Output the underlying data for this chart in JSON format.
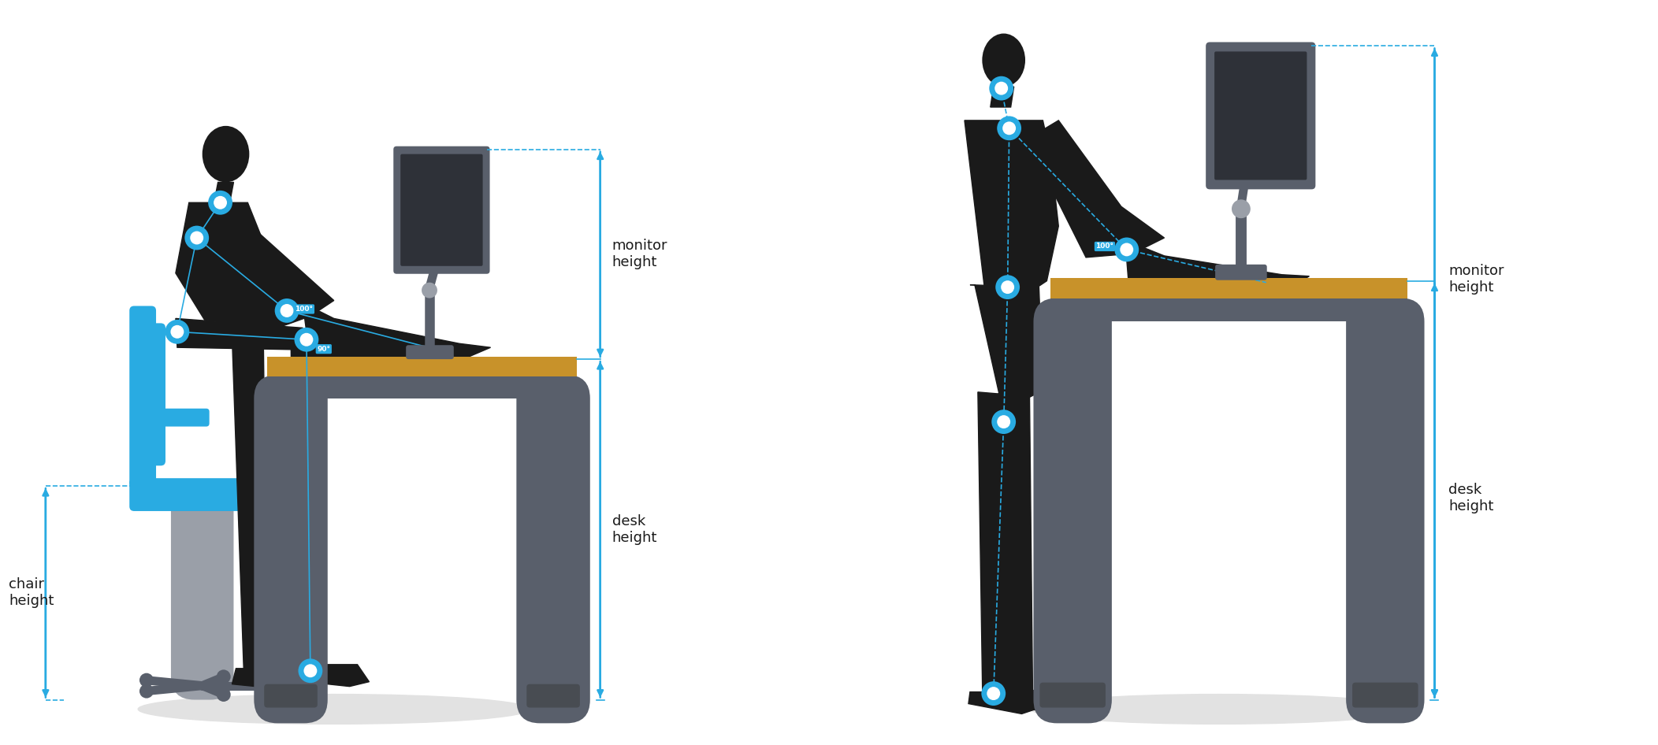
{
  "bg_color": "#ffffff",
  "cyan": "#29abe2",
  "dark_gray": "#595f6b",
  "medium_gray": "#9a9fa8",
  "light_gray": "#cccccc",
  "gold": "#c8922a",
  "black": "#1a1a1a",
  "chair_blue": "#29abe2",
  "shadow_color": "#e2e2e2",
  "labels": {
    "chair_height": "chair\nheight",
    "desk_height_sit": "desk\nheight",
    "monitor_height_sit": "monitor\nheight",
    "desk_height_stand": "desk\nheight",
    "monitor_height_stand": "monitor\nheight"
  }
}
